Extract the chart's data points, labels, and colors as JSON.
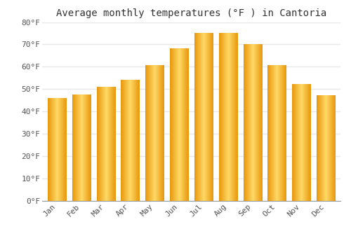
{
  "title": "Average monthly temperatures (°F ) in Cantoria",
  "months": [
    "Jan",
    "Feb",
    "Mar",
    "Apr",
    "May",
    "Jun",
    "Jul",
    "Aug",
    "Sep",
    "Oct",
    "Nov",
    "Dec"
  ],
  "values": [
    46,
    47.5,
    51,
    54,
    60.5,
    68,
    75,
    75,
    70,
    60.5,
    52,
    47
  ],
  "bar_color_main": "#FFBE00",
  "bar_color_light": "#FFD966",
  "bar_color_dark": "#E8960A",
  "ylim": [
    0,
    80
  ],
  "yticks": [
    0,
    10,
    20,
    30,
    40,
    50,
    60,
    70,
    80
  ],
  "ytick_labels": [
    "0°F",
    "10°F",
    "20°F",
    "30°F",
    "40°F",
    "50°F",
    "60°F",
    "70°F",
    "80°F"
  ],
  "background_color": "#FFFFFF",
  "grid_color": "#E8E8E8",
  "title_fontsize": 10,
  "tick_fontsize": 8
}
